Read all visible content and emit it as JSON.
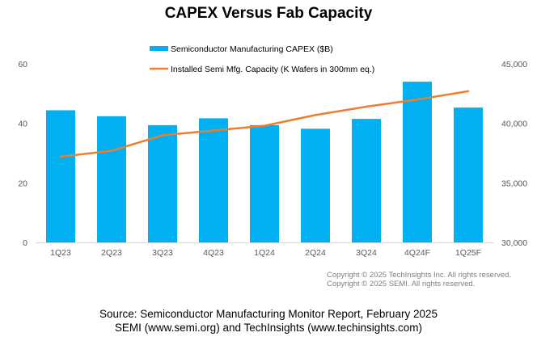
{
  "chart_data": {
    "type": "bar",
    "title": "CAPEX Versus Fab Capacity",
    "categories": [
      "1Q23",
      "2Q23",
      "3Q23",
      "4Q23",
      "1Q24",
      "2Q24",
      "3Q24",
      "4Q24F",
      "1Q25F"
    ],
    "series": [
      {
        "name": "Semiconductor Manufacturing CAPEX ($B)",
        "type": "bar",
        "axis": "left",
        "color": "#00B0F0",
        "values": [
          44.4,
          42.4,
          39.4,
          41.7,
          39.4,
          38.2,
          41.5,
          54.0,
          45.3
        ]
      },
      {
        "name": "Installed Semi Mfg. Capacity (K Wafers in 300mm eq.)",
        "type": "line",
        "axis": "right",
        "color": "#ED7D31",
        "values": [
          37200,
          37700,
          39000,
          39400,
          39800,
          40700,
          41400,
          42000,
          42700
        ]
      }
    ],
    "left_axis": {
      "label": "",
      "ylim": [
        0,
        60
      ],
      "ticks": [
        "0",
        "20",
        "40",
        "60"
      ],
      "tick_values": [
        0,
        20,
        40,
        60
      ]
    },
    "right_axis": {
      "label": "",
      "ylim": [
        30000,
        45000
      ],
      "ticks": [
        "30,000",
        "35,000",
        "40,000",
        "45,000"
      ],
      "tick_values": [
        30000,
        35000,
        40000,
        45000
      ]
    },
    "xlabel": "",
    "grid": false,
    "legend_position": "top-center"
  },
  "copyright": {
    "line1": "Copyright © 2025 TechInsights Inc.  All rights reserved.",
    "line2": "Copyright © 2025 SEMI.  All rights reserved."
  },
  "source": {
    "line1": "Source: Semiconductor Manufacturing Monitor Report, February 2025",
    "line2": "SEMI (www.semi.org) and TechInsights (www.techinsights.com)"
  }
}
